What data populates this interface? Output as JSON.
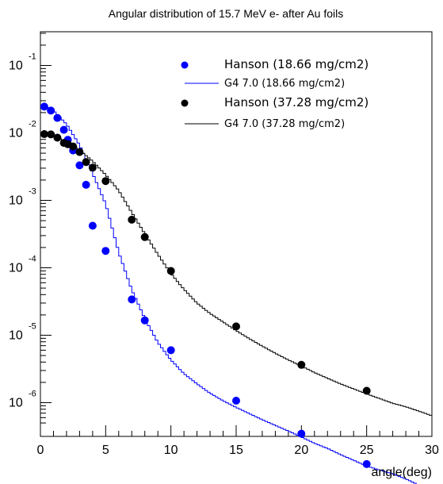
{
  "chart_data": {
    "type": "scatter",
    "title": "Angular distribution of 15.7 MeV e- after Au foils",
    "xlabel": "angle(deg)",
    "ylabel": "",
    "xlim": [
      0,
      30
    ],
    "ylim_log10": [
      -6.5,
      -0.5
    ],
    "y_scale": "log",
    "grid": false,
    "legend_position": "top-right",
    "x_ticks": [
      "0",
      "5",
      "10",
      "15",
      "20",
      "25",
      "30"
    ],
    "y_ticks": [
      {
        "base": "10",
        "exp": "-1"
      },
      {
        "base": "10",
        "exp": "-2"
      },
      {
        "base": "10",
        "exp": "-3"
      },
      {
        "base": "10",
        "exp": "-4"
      },
      {
        "base": "10",
        "exp": "-5"
      },
      {
        "base": "10",
        "exp": "-6"
      }
    ],
    "series": [
      {
        "name": "Hanson (18.66 mg/cm2)",
        "kind": "points",
        "color": "#0000ff",
        "x": [
          0.3,
          0.8,
          1.3,
          1.8,
          2.1,
          2.5,
          3.0,
          3.5,
          4.0,
          5.0,
          7.0,
          8.0,
          10.0,
          15.0,
          20.0,
          25.0
        ],
        "y": [
          0.0245,
          0.0214,
          0.0167,
          0.0111,
          0.0079,
          0.0055,
          0.0033,
          0.0017,
          0.00042,
          0.000178,
          3.39e-05,
          1.66e-05,
          6e-06,
          1.07e-06,
          3.47e-07,
          1.23e-07
        ]
      },
      {
        "name": "G4 7.0 (18.66 mg/cm2)",
        "kind": "histogram",
        "color": "#0000ff",
        "x": [
          0,
          1,
          2,
          3,
          4,
          5,
          6,
          7,
          8,
          9,
          10,
          11,
          12,
          13,
          14,
          15,
          16,
          17,
          18,
          19,
          20,
          21,
          22,
          23,
          24,
          25,
          26,
          27,
          28,
          29,
          30
        ],
        "y": [
          0.0263,
          0.0214,
          0.0135,
          0.0066,
          0.0025,
          0.00089,
          0.00017,
          4.7e-05,
          1.78e-05,
          7.8e-06,
          4.3e-06,
          2.7e-06,
          1.9e-06,
          1.38e-06,
          1.07e-06,
          8.5e-07,
          6.9e-07,
          5.6e-07,
          4.6e-07,
          3.8e-07,
          3.1e-07,
          2.5e-07,
          2.1e-07,
          1.7e-07,
          1.4e-07,
          1.15e-07,
          1e-07,
          8.8e-08,
          7.4e-08,
          6e-08,
          5e-08
        ]
      },
      {
        "name": "Hanson (37.28 mg/cm2)",
        "kind": "points",
        "color": "#000000",
        "x": [
          0.3,
          0.8,
          1.3,
          1.8,
          2.1,
          2.5,
          3.0,
          3.5,
          4.0,
          5.0,
          7.0,
          8.0,
          10.0,
          15.0,
          20.0,
          25.0
        ],
        "y": [
          0.0096,
          0.0095,
          0.0085,
          0.0071,
          0.0068,
          0.0063,
          0.0052,
          0.0037,
          0.00305,
          0.00193,
          0.000516,
          0.000285,
          8.98e-05,
          1.35e-05,
          3.64e-06,
          1.5e-06
        ]
      },
      {
        "name": "G4 7.0 (37.28 mg/cm2)",
        "kind": "histogram",
        "color": "#000000",
        "x": [
          0,
          1,
          2,
          3,
          4,
          5,
          6,
          7,
          8,
          9,
          10,
          11,
          12,
          13,
          14,
          15,
          16,
          17,
          18,
          19,
          20,
          21,
          22,
          23,
          24,
          25,
          26,
          27,
          28,
          29,
          30
        ],
        "y": [
          0.0096,
          0.0091,
          0.0074,
          0.0056,
          0.0038,
          0.0024,
          0.0014,
          0.00066,
          0.00032,
          0.000158,
          8.2e-05,
          4.8e-05,
          3e-05,
          2.1e-05,
          1.57e-05,
          1.17e-05,
          8.9e-06,
          6.9e-06,
          5.4e-06,
          4.3e-06,
          3.5e-06,
          2.8e-06,
          2.3e-06,
          1.9e-06,
          1.6e-06,
          1.35e-06,
          1.15e-06,
          9.8e-07,
          8.7e-07,
          7.5e-07,
          6.4e-07
        ]
      }
    ]
  }
}
